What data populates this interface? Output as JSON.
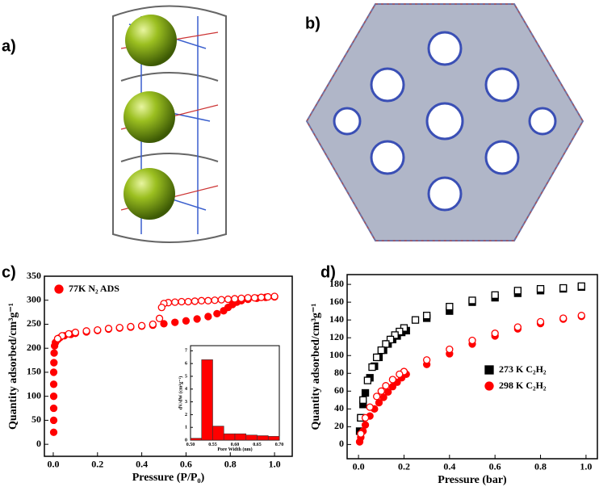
{
  "panel_labels": [
    "a)",
    "b)",
    "c)",
    "d)"
  ],
  "chart_data": [
    {
      "type": "scatter",
      "x_label": "Pressure (P/P₀)",
      "y_label": "Quantity adsorbed/cm³g⁻¹",
      "xlim": [
        -0.04,
        1.08
      ],
      "ylim": [
        -25,
        350
      ],
      "xticks": [
        {
          "value": 0,
          "label": "0.0"
        },
        0.2,
        0.4,
        0.6,
        0.8,
        {
          "value": 1,
          "label": "1.0"
        }
      ],
      "yticks": [
        0,
        50,
        100,
        150,
        200,
        250,
        300,
        350
      ],
      "legend": "upper left",
      "series": [
        {
          "name": "77K N₂ ADS",
          "color": "#ff0000",
          "marker": "circle",
          "filled": true,
          "x": [
            0.002,
            0.002,
            0.002,
            0.002,
            0.002,
            0.002,
            0.003,
            0.004,
            0.006,
            0.01,
            0.02,
            0.03,
            0.05,
            0.08,
            0.1,
            0.15,
            0.2,
            0.25,
            0.3,
            0.35,
            0.4,
            0.45,
            0.5,
            0.55,
            0.6,
            0.65,
            0.7,
            0.74,
            0.77,
            0.79,
            0.81,
            0.83,
            0.85,
            0.88,
            0.92,
            0.96,
            1.0
          ],
          "values": [
            25,
            50,
            75,
            100,
            125,
            150,
            170,
            190,
            205,
            212,
            218,
            222,
            226,
            229,
            231,
            234,
            237,
            240,
            242,
            244,
            246,
            248,
            251,
            254,
            257,
            261,
            266,
            272,
            278,
            285,
            291,
            296,
            299,
            302,
            304,
            306,
            307
          ]
        },
        {
          "color": "#ff0000",
          "marker": "circle",
          "filled": false,
          "x": [
            1.0,
            0.97,
            0.94,
            0.91,
            0.88,
            0.85,
            0.82,
            0.79,
            0.76,
            0.73,
            0.7,
            0.67,
            0.64,
            0.61,
            0.58,
            0.55,
            0.52,
            0.5,
            0.49,
            0.48,
            0.45,
            0.4,
            0.35,
            0.3,
            0.25,
            0.2,
            0.15,
            0.1,
            0.07,
            0.04,
            0.02
          ],
          "values": [
            308,
            307,
            306,
            305,
            305,
            304,
            303,
            302,
            301,
            300,
            299,
            299,
            298,
            297,
            297,
            296,
            295,
            293,
            285,
            262,
            250,
            247,
            245,
            243,
            241,
            238,
            236,
            233,
            230,
            226,
            220
          ]
        }
      ]
    },
    {
      "type": "histogram",
      "x_label": "Pore Width (nm)",
      "y_label": "dV/dW (cm³g⁻¹)",
      "bins": [
        0.5,
        0.525,
        0.55,
        0.575,
        0.6,
        0.625,
        0.65,
        0.675,
        0.7
      ],
      "counts": [
        0.15,
        6.3,
        1.1,
        0.5,
        0.5,
        0.4,
        0.35,
        0.3
      ],
      "color": "#ff0000",
      "xlim": [
        0.5,
        0.7
      ],
      "ylim": [
        0,
        7.4
      ],
      "xticks": [
        {
          "value": 0.5,
          "label": "0.50"
        },
        0.55,
        {
          "value": 0.6,
          "label": "0.60"
        },
        0.65,
        {
          "value": 0.7,
          "label": "0.70"
        }
      ],
      "yticks": [
        0,
        1,
        2,
        3,
        4,
        5,
        6,
        7
      ]
    },
    {
      "type": "scatter",
      "x_label": "Pressure (bar)",
      "y_label": "Quantity adsorbed/cm³g⁻¹",
      "xlim": [
        -0.05,
        1.05
      ],
      "ylim": [
        -16,
        191
      ],
      "xticks": [
        {
          "value": 0,
          "label": "0.0"
        },
        0.2,
        0.4,
        0.6,
        0.8,
        {
          "value": 1,
          "label": "1.0"
        }
      ],
      "yticks": [
        0,
        20,
        40,
        60,
        80,
        100,
        120,
        140,
        160,
        180
      ],
      "legend": "lower right",
      "series": [
        {
          "name": "273 K C₂H₂",
          "color": "#000000",
          "marker": "square",
          "filled": true,
          "x": [
            0.005,
            0.01,
            0.02,
            0.03,
            0.05,
            0.07,
            0.09,
            0.11,
            0.13,
            0.15,
            0.17,
            0.19,
            0.21,
            0.3,
            0.4,
            0.5,
            0.6,
            0.7,
            0.8,
            0.9,
            0.98
          ],
          "values": [
            15,
            30,
            45,
            58,
            75,
            88,
            98,
            106,
            113,
            118,
            122,
            126,
            128,
            142,
            150,
            160,
            165,
            170,
            173,
            175,
            177
          ]
        },
        {
          "color": "#000000",
          "marker": "square",
          "filled": false,
          "x": [
            0.98,
            0.9,
            0.8,
            0.7,
            0.6,
            0.5,
            0.4,
            0.3,
            0.25,
            0.2,
            0.18,
            0.16,
            0.14,
            0.12,
            0.1,
            0.08,
            0.06,
            0.04,
            0.02,
            0.01
          ],
          "values": [
            178,
            176,
            175,
            173,
            168,
            162,
            155,
            145,
            140,
            131,
            127,
            123,
            118,
            113,
            106,
            98,
            87,
            72,
            50,
            30
          ]
        },
        {
          "name": "298 K C₂H₂",
          "color": "#ff0000",
          "marker": "circle",
          "filled": true,
          "x": [
            0.005,
            0.01,
            0.02,
            0.03,
            0.05,
            0.07,
            0.09,
            0.11,
            0.13,
            0.15,
            0.17,
            0.19,
            0.21,
            0.3,
            0.4,
            0.5,
            0.6,
            0.7,
            0.8,
            0.9,
            0.98
          ],
          "values": [
            3,
            8,
            15,
            22,
            32,
            40,
            47,
            53,
            59,
            65,
            70,
            75,
            79,
            90,
            102,
            113,
            122,
            130,
            136,
            141,
            144
          ]
        },
        {
          "color": "#ff0000",
          "marker": "circle",
          "filled": false,
          "x": [
            0.98,
            0.9,
            0.8,
            0.7,
            0.6,
            0.5,
            0.4,
            0.3,
            0.2,
            0.18,
            0.15,
            0.12,
            0.1,
            0.08,
            0.05,
            0.03,
            0.01
          ],
          "values": [
            145,
            142,
            138,
            132,
            125,
            117,
            107,
            95,
            82,
            79,
            73,
            66,
            60,
            54,
            42,
            30,
            12
          ]
        }
      ]
    }
  ]
}
